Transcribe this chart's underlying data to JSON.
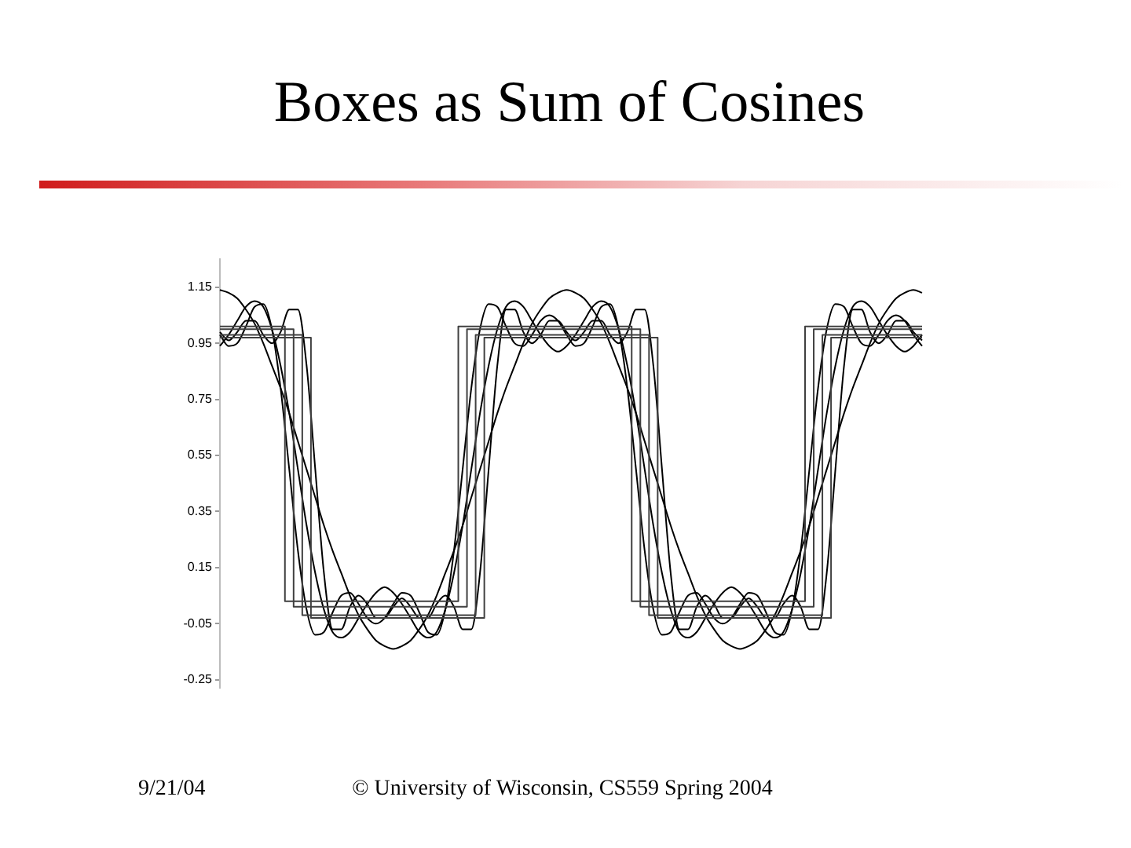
{
  "chart_data": {
    "type": "line",
    "title": "Boxes as Sum of Cosines",
    "annotations": [
      "9/21/04",
      "© University of Wisconsin, CS559 Spring 2004"
    ],
    "categories": [
      null,
      null,
      null,
      null,
      null,
      null,
      null,
      null,
      null,
      null,
      null,
      null,
      null,
      null,
      null,
      null,
      null,
      null,
      null,
      null,
      null,
      null,
      null,
      null,
      null,
      null,
      null,
      null,
      null,
      null,
      null,
      null,
      null,
      null,
      null,
      null,
      null,
      null,
      null,
      null,
      null,
      null,
      null,
      null,
      null,
      null,
      null,
      null,
      null,
      null,
      null,
      null,
      null,
      null,
      null,
      null,
      null,
      null,
      null,
      null,
      null,
      null,
      null,
      null,
      null,
      null,
      null,
      null,
      null,
      null,
      null,
      null,
      null,
      null,
      null,
      null,
      null,
      null,
      null,
      null,
      null,
      null
    ],
    "ylim": [
      -0.28,
      1.25
    ],
    "yticks": [
      -0.25,
      -0.05,
      0.15,
      0.35,
      0.55,
      0.75,
      0.95,
      1.15
    ],
    "grid": false,
    "tick_labels": "y",
    "marker": "none",
    "series": [
      {
        "type": "step",
        "color": "#404040",
        "values": [
          1.01,
          1.01,
          1.01,
          1.01,
          1.01,
          1.01,
          1.01,
          1.01,
          0.03,
          0.03,
          0.03,
          0.03,
          0.03,
          0.03,
          0.03,
          0.03,
          0.03,
          0.03,
          0.03,
          0.03,
          0.03,
          0.03,
          0.03,
          0.03,
          0.03,
          0.03,
          0.03,
          0.03,
          1.01,
          1.01,
          1.01,
          1.01,
          1.01,
          1.01,
          1.01,
          1.01,
          1.01,
          1.01,
          1.01,
          1.01,
          1.01,
          1.01,
          1.01,
          1.01,
          1.01,
          1.01,
          1.01,
          1.01,
          0.03,
          0.03,
          0.03,
          0.03,
          0.03,
          0.03,
          0.03,
          0.03,
          0.03,
          0.03,
          0.03,
          0.03,
          0.03,
          0.03,
          0.03,
          0.03,
          0.03,
          0.03,
          0.03,
          0.03,
          1.01,
          1.01,
          1.01,
          1.01,
          1.01,
          1.01,
          1.01,
          1.01,
          1.01,
          1.01,
          1.01,
          1.01,
          1.01,
          1.01
        ]
      },
      {
        "type": "step",
        "color": "#404040",
        "values": [
          1.0,
          1.0,
          1.0,
          1.0,
          1.0,
          1.0,
          1.0,
          1.0,
          1.0,
          0.01,
          0.01,
          0.01,
          0.01,
          0.01,
          0.01,
          0.01,
          0.01,
          0.01,
          0.01,
          0.01,
          0.01,
          0.01,
          0.01,
          0.01,
          0.01,
          0.01,
          0.01,
          0.01,
          0.01,
          1.0,
          1.0,
          1.0,
          1.0,
          1.0,
          1.0,
          1.0,
          1.0,
          1.0,
          1.0,
          1.0,
          1.0,
          1.0,
          1.0,
          1.0,
          1.0,
          1.0,
          1.0,
          1.0,
          1.0,
          0.01,
          0.01,
          0.01,
          0.01,
          0.01,
          0.01,
          0.01,
          0.01,
          0.01,
          0.01,
          0.01,
          0.01,
          0.01,
          0.01,
          0.01,
          0.01,
          0.01,
          0.01,
          0.01,
          0.01,
          1.0,
          1.0,
          1.0,
          1.0,
          1.0,
          1.0,
          1.0,
          1.0,
          1.0,
          1.0,
          1.0,
          1.0,
          1.0
        ]
      },
      {
        "type": "step",
        "color": "#404040",
        "values": [
          0.98,
          0.98,
          0.98,
          0.98,
          0.98,
          0.98,
          0.98,
          0.98,
          0.98,
          0.98,
          -0.02,
          -0.02,
          -0.02,
          -0.02,
          -0.02,
          -0.02,
          -0.02,
          -0.02,
          -0.02,
          -0.02,
          -0.02,
          -0.02,
          -0.02,
          -0.02,
          -0.02,
          -0.02,
          -0.02,
          -0.02,
          -0.02,
          -0.02,
          0.98,
          0.98,
          0.98,
          0.98,
          0.98,
          0.98,
          0.98,
          0.98,
          0.98,
          0.98,
          0.98,
          0.98,
          0.98,
          0.98,
          0.98,
          0.98,
          0.98,
          0.98,
          0.98,
          0.98,
          -0.02,
          -0.02,
          -0.02,
          -0.02,
          -0.02,
          -0.02,
          -0.02,
          -0.02,
          -0.02,
          -0.02,
          -0.02,
          -0.02,
          -0.02,
          -0.02,
          -0.02,
          -0.02,
          -0.02,
          -0.02,
          -0.02,
          -0.02,
          0.98,
          0.98,
          0.98,
          0.98,
          0.98,
          0.98,
          0.98,
          0.98,
          0.98,
          0.98,
          0.98,
          0.98
        ]
      },
      {
        "type": "step",
        "color": "#404040",
        "values": [
          0.97,
          0.97,
          0.97,
          0.97,
          0.97,
          0.97,
          0.97,
          0.97,
          0.97,
          0.97,
          0.97,
          -0.03,
          -0.03,
          -0.03,
          -0.03,
          -0.03,
          -0.03,
          -0.03,
          -0.03,
          -0.03,
          -0.03,
          -0.03,
          -0.03,
          -0.03,
          -0.03,
          -0.03,
          -0.03,
          -0.03,
          -0.03,
          -0.03,
          -0.03,
          0.97,
          0.97,
          0.97,
          0.97,
          0.97,
          0.97,
          0.97,
          0.97,
          0.97,
          0.97,
          0.97,
          0.97,
          0.97,
          0.97,
          0.97,
          0.97,
          0.97,
          0.97,
          0.97,
          0.97,
          -0.03,
          -0.03,
          -0.03,
          -0.03,
          -0.03,
          -0.03,
          -0.03,
          -0.03,
          -0.03,
          -0.03,
          -0.03,
          -0.03,
          -0.03,
          -0.03,
          -0.03,
          -0.03,
          -0.03,
          -0.03,
          -0.03,
          -0.03,
          0.97,
          0.97,
          0.97,
          0.97,
          0.97,
          0.97,
          0.97,
          0.97,
          0.97,
          0.97,
          0.97
        ]
      },
      {
        "type": "line",
        "color": "#000000",
        "values": [
          1.14,
          1.13,
          1.11,
          1.07,
          1.02,
          0.95,
          0.87,
          0.79,
          0.7,
          0.6,
          0.5,
          0.4,
          0.3,
          0.21,
          0.13,
          0.05,
          -0.02,
          -0.07,
          -0.11,
          -0.13,
          -0.14,
          -0.13,
          -0.11,
          -0.07,
          -0.02,
          0.05,
          0.13,
          0.21,
          0.3,
          0.4,
          0.5,
          0.6,
          0.7,
          0.79,
          0.87,
          0.95,
          1.02,
          1.07,
          1.11,
          1.13,
          1.14,
          1.13,
          1.11,
          1.07,
          1.02,
          0.95,
          0.87,
          0.79,
          0.7,
          0.6,
          0.5,
          0.4,
          0.3,
          0.21,
          0.13,
          0.05,
          -0.02,
          -0.07,
          -0.11,
          -0.13,
          -0.14,
          -0.13,
          -0.11,
          -0.07,
          -0.02,
          0.05,
          0.13,
          0.21,
          0.3,
          0.4,
          0.5,
          0.6,
          0.7,
          0.79,
          0.87,
          0.95,
          1.02,
          1.07,
          1.11,
          1.13,
          1.14,
          1.13
        ]
      },
      {
        "type": "line",
        "color": "#000000",
        "values": [
          0.94,
          0.98,
          1.03,
          1.08,
          1.1,
          1.08,
          1.0,
          0.87,
          0.7,
          0.5,
          0.3,
          0.13,
          0.0,
          -0.08,
          -0.1,
          -0.08,
          -0.03,
          0.02,
          0.06,
          0.08,
          0.06,
          0.02,
          -0.03,
          -0.08,
          -0.1,
          -0.08,
          0.0,
          0.13,
          0.3,
          0.5,
          0.7,
          0.87,
          1.0,
          1.08,
          1.1,
          1.08,
          1.03,
          0.98,
          0.94,
          0.92,
          0.94,
          0.98,
          1.03,
          1.08,
          1.1,
          1.08,
          1.0,
          0.87,
          0.7,
          0.5,
          0.3,
          0.13,
          0.0,
          -0.08,
          -0.1,
          -0.08,
          -0.03,
          0.02,
          0.06,
          0.08,
          0.06,
          0.02,
          -0.03,
          -0.08,
          -0.1,
          -0.08,
          0.0,
          0.13,
          0.3,
          0.5,
          0.7,
          0.87,
          1.0,
          1.08,
          1.1,
          1.08,
          1.03,
          0.98,
          0.94,
          0.92,
          0.94,
          0.98
        ]
      },
      {
        "type": "line",
        "color": "#000000",
        "values": [
          0.98,
          0.94,
          0.95,
          1.01,
          1.08,
          1.09,
          1.0,
          0.79,
          0.5,
          0.21,
          0.0,
          -0.09,
          -0.08,
          -0.01,
          0.05,
          0.06,
          0.02,
          -0.03,
          -0.05,
          -0.03,
          0.02,
          0.06,
          0.05,
          -0.01,
          -0.08,
          -0.09,
          0.0,
          0.21,
          0.5,
          0.79,
          1.0,
          1.09,
          1.08,
          1.01,
          0.95,
          0.94,
          0.98,
          1.03,
          1.05,
          1.03,
          0.98,
          0.94,
          0.95,
          1.01,
          1.08,
          1.09,
          1.0,
          0.79,
          0.5,
          0.21,
          0.0,
          -0.09,
          -0.08,
          -0.01,
          0.05,
          0.06,
          0.02,
          -0.03,
          -0.05,
          -0.03,
          0.02,
          0.06,
          0.05,
          -0.01,
          -0.08,
          -0.09,
          0.0,
          0.21,
          0.5,
          0.79,
          1.0,
          1.09,
          1.08,
          1.01,
          0.95,
          0.94,
          0.98,
          1.03,
          1.05,
          1.03,
          0.98,
          0.94
        ]
      },
      {
        "type": "line",
        "color": "#000000",
        "values": [
          0.99,
          0.96,
          0.99,
          1.03,
          1.03,
          0.98,
          0.95,
          0.99,
          1.07,
          1.07,
          0.87,
          0.5,
          0.13,
          -0.07,
          -0.07,
          0.01,
          0.05,
          0.02,
          -0.03,
          -0.03,
          0.01,
          0.04,
          0.01,
          -0.03,
          -0.03,
          0.02,
          0.05,
          0.01,
          -0.07,
          -0.07,
          0.13,
          0.5,
          0.87,
          1.07,
          1.07,
          0.99,
          0.95,
          0.98,
          1.03,
          1.03,
          0.99,
          0.96,
          0.99,
          1.03,
          1.03,
          0.98,
          0.95,
          0.99,
          1.07,
          1.07,
          0.87,
          0.5,
          0.13,
          -0.07,
          -0.07,
          0.01,
          0.05,
          0.02,
          -0.03,
          -0.03,
          0.01,
          0.04,
          0.01,
          -0.03,
          -0.03,
          0.02,
          0.05,
          0.01,
          -0.07,
          -0.07,
          0.13,
          0.5,
          0.87,
          1.07,
          1.07,
          0.99,
          0.95,
          0.98,
          1.03,
          1.03,
          0.99,
          0.96
        ]
      }
    ]
  }
}
